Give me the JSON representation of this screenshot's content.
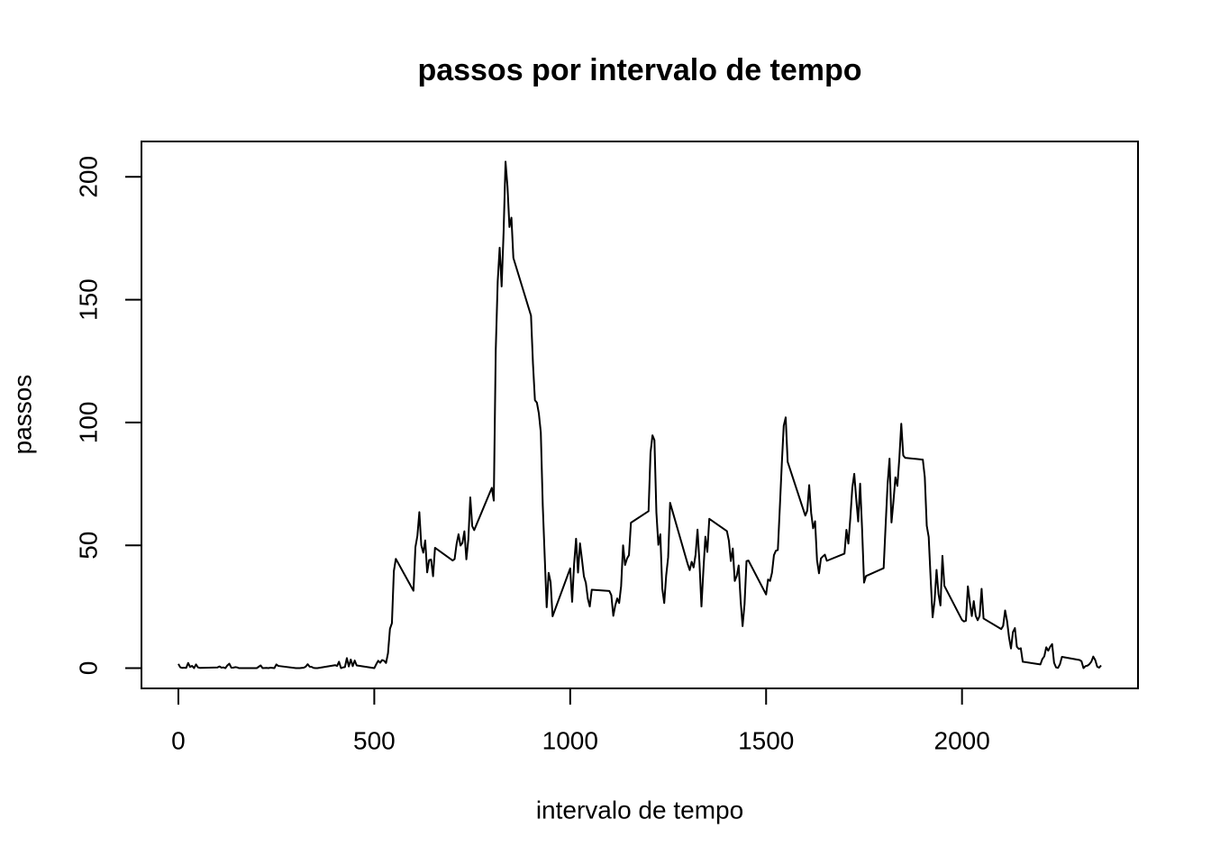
{
  "chart_data": {
    "type": "line",
    "title": "passos por intervalo de tempo",
    "x_label": "intervalo de tempo",
    "y_label": "passos",
    "x": [
      0,
      5,
      10,
      15,
      20,
      25,
      30,
      35,
      40,
      45,
      50,
      55,
      100,
      105,
      110,
      115,
      120,
      125,
      130,
      135,
      140,
      145,
      150,
      155,
      200,
      210,
      215,
      225,
      230,
      235,
      245,
      250,
      255,
      300,
      310,
      320,
      325,
      330,
      335,
      340,
      345,
      350,
      355,
      400,
      405,
      410,
      415,
      420,
      425,
      430,
      435,
      440,
      445,
      450,
      455,
      500,
      505,
      510,
      515,
      520,
      525,
      530,
      535,
      540,
      545,
      550,
      555,
      600,
      605,
      610,
      615,
      620,
      625,
      630,
      635,
      640,
      645,
      650,
      655,
      700,
      705,
      710,
      715,
      720,
      725,
      730,
      735,
      740,
      745,
      750,
      755,
      800,
      805,
      810,
      815,
      820,
      825,
      830,
      835,
      840,
      845,
      850,
      855,
      900,
      905,
      910,
      915,
      920,
      925,
      930,
      935,
      940,
      945,
      950,
      955,
      1000,
      1005,
      1010,
      1015,
      1020,
      1025,
      1030,
      1035,
      1040,
      1045,
      1050,
      1055,
      1100,
      1105,
      1110,
      1115,
      1120,
      1125,
      1130,
      1135,
      1140,
      1145,
      1150,
      1155,
      1200,
      1205,
      1210,
      1215,
      1220,
      1225,
      1230,
      1235,
      1240,
      1245,
      1250,
      1255,
      1300,
      1305,
      1310,
      1315,
      1320,
      1325,
      1330,
      1335,
      1340,
      1345,
      1350,
      1355,
      1400,
      1405,
      1410,
      1415,
      1420,
      1425,
      1430,
      1435,
      1440,
      1445,
      1450,
      1455,
      1500,
      1505,
      1510,
      1515,
      1520,
      1525,
      1530,
      1535,
      1540,
      1545,
      1550,
      1555,
      1600,
      1605,
      1610,
      1615,
      1620,
      1625,
      1630,
      1635,
      1640,
      1645,
      1650,
      1655,
      1700,
      1705,
      1710,
      1715,
      1720,
      1725,
      1730,
      1735,
      1740,
      1745,
      1750,
      1755,
      1800,
      1805,
      1810,
      1815,
      1820,
      1825,
      1830,
      1835,
      1840,
      1845,
      1850,
      1855,
      1900,
      1905,
      1910,
      1915,
      1920,
      1925,
      1930,
      1935,
      1940,
      1945,
      1950,
      1955,
      2000,
      2005,
      2010,
      2015,
      2020,
      2025,
      2030,
      2035,
      2040,
      2045,
      2050,
      2055,
      2100,
      2105,
      2110,
      2115,
      2120,
      2125,
      2130,
      2135,
      2140,
      2145,
      2150,
      2155,
      2200,
      2205,
      2210,
      2215,
      2220,
      2225,
      2230,
      2235,
      2240,
      2245,
      2250,
      2255,
      2300,
      2305,
      2310,
      2315,
      2320,
      2325,
      2330,
      2335,
      2340,
      2345,
      2350,
      2355
    ],
    "values": [
      1.7,
      0.3,
      0.1,
      0.2,
      0.1,
      2.1,
      0.5,
      0.9,
      0,
      1.5,
      0.3,
      0.1,
      0.3,
      0.7,
      0.2,
      0.3,
      0,
      1.1,
      1.8,
      0.2,
      0.2,
      0.4,
      0.3,
      0,
      0,
      1.1,
      0,
      0.1,
      0,
      0.2,
      0,
      1.5,
      0.9,
      0,
      0,
      0.2,
      0.6,
      1.6,
      0.6,
      0.5,
      0.1,
      0,
      0,
      1.2,
      0.9,
      2.6,
      0,
      0.3,
      0.4,
      4.1,
      0.7,
      3.5,
      0.8,
      3.1,
      1.1,
      0,
      1.6,
      3.0,
      2.2,
      3.3,
      3.0,
      2.1,
      6.1,
      16,
      18.3,
      39.5,
      44.5,
      31.5,
      49.3,
      53.8,
      63.5,
      50,
      47,
      52,
      39,
      44,
      44.2,
      37.4,
      49,
      43.8,
      44.4,
      50.5,
      54.5,
      49.9,
      51,
      55.7,
      44.3,
      52.3,
      69.5,
      57.8,
      56.2,
      73.4,
      68.2,
      129.4,
      157.5,
      171.2,
      155.4,
      177.3,
      206.2,
      195.9,
      179.6,
      183.4,
      167,
      143.5,
      124,
      109.1,
      108.1,
      103.7,
      96,
      66.2,
      45.2,
      24.8,
      38.8,
      35,
      21.1,
      40.6,
      27,
      42.4,
      52.7,
      38.9,
      50.8,
      44.3,
      37.4,
      34.7,
      28.3,
      25.1,
      31.9,
      31.4,
      29.7,
      21.3,
      25.5,
      28.4,
      26.5,
      33.4,
      50,
      42,
      44.6,
      46,
      59.2,
      63.9,
      87.7,
      94.8,
      92.8,
      63.4,
      50.2,
      54.5,
      32.4,
      26.5,
      37.7,
      45.1,
      67.3,
      42.3,
      39.9,
      43.3,
      41,
      46.2,
      56.4,
      42.8,
      25.1,
      40,
      53.5,
      47.3,
      60.8,
      55.8,
      51.9,
      43.6,
      48.7,
      35.5,
      37.5,
      41.8,
      27.5,
      17.1,
      26.1,
      43.6,
      43.8,
      30,
      36.1,
      35.5,
      38.8,
      46,
      47.8,
      48.1,
      65.3,
      82.9,
      98.7,
      102.1,
      84,
      62.1,
      64.1,
      74.5,
      63.2,
      56.9,
      59.8,
      43.9,
      38.6,
      44.7,
      45.5,
      46.2,
      43.7,
      46.6,
      56.3,
      50.7,
      61.2,
      73.4,
      79.1,
      68.9,
      59.7,
      75.1,
      56.5,
      34.8,
      37.5,
      40.7,
      58,
      74.7,
      85.3,
      59.3,
      67.8,
      77.7,
      74.2,
      85.3,
      99.5,
      86.6,
      85.6,
      84.9,
      77.8,
      58,
      53.4,
      36.3,
      20.7,
      27.4,
      40,
      30.2,
      25.5,
      45.7,
      33.5,
      19.6,
      19,
      19.3,
      33.3,
      26.8,
      21.2,
      27.3,
      21.3,
      19.5,
      21.3,
      32.3,
      20.2,
      15.9,
      17.2,
      23.5,
      19.2,
      12.5,
      8,
      14.7,
      16.3,
      8.7,
      7.8,
      8.1,
      2.6,
      1.5,
      3.7,
      4.8,
      8.5,
      7.1,
      8.7,
      9.8,
      2.2,
      0.3,
      0.1,
      1.6,
      4.6,
      3.3,
      2.8,
      0,
      0.8,
      1,
      1.6,
      2.6,
      4.7,
      3.3,
      0.6,
      0.2,
      1.1
    ],
    "color": "#000000",
    "xlim": [
      -94.2,
      2449.2
    ],
    "xticks": [
      0,
      500,
      1000,
      1500,
      2000
    ],
    "ylim": [
      -8.25,
      214.42
    ],
    "yticks": [
      0,
      50,
      100,
      150,
      200
    ],
    "grid": false
  }
}
